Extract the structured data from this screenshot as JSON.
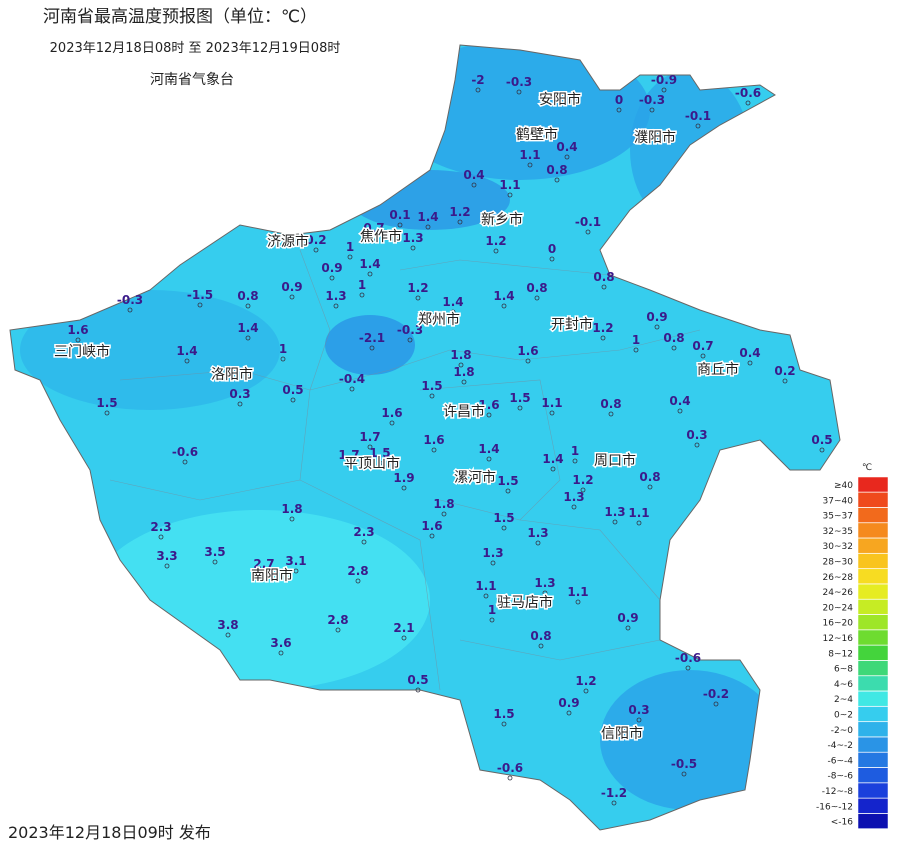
{
  "header": {
    "title": "河南省最高温度预报图（单位：℃）",
    "period": "2023年12月18日08时 至 2023年12月19日08时",
    "issuer": "河南省气象台"
  },
  "footer": {
    "published": "2023年12月18日09时 发布"
  },
  "cities": [
    "安阳市",
    "鹤壁市",
    "濮阳市",
    "新乡市",
    "焦作市",
    "济源市",
    "郑州市",
    "开封市",
    "商丘市",
    "三门峡市",
    "洛阳市",
    "许昌市",
    "平顶山市",
    "漯河市",
    "周口市",
    "南阳市",
    "驻马店市",
    "信阳市"
  ],
  "stations": [
    -2,
    -0.3,
    0,
    -0.3,
    -0.9,
    -0.6,
    -0.1,
    1.1,
    0.4,
    0.8,
    0.4,
    1.1,
    1.2,
    1.4,
    0.1,
    0.7,
    -0.1,
    1.2,
    0,
    0.2,
    1.3,
    1,
    1.4,
    0.9,
    1,
    0.8,
    1.3,
    0.9,
    0.8,
    -1.5,
    -0.3,
    1.2,
    1.4,
    1.4,
    0.8,
    1.6,
    1.4,
    -2.1,
    -0.3,
    1.2,
    0.9,
    0.8,
    1,
    0.7,
    0.4,
    1.4,
    1,
    1.8,
    1.6,
    0.2,
    1.8,
    -0.4,
    1.5,
    0.5,
    0.3,
    1.5,
    1.6,
    1.6,
    1.5,
    1.1,
    0.8,
    0.4,
    0.3,
    0.5,
    1.7,
    1.6,
    -0.6,
    1.4,
    1.4,
    1,
    1.7,
    1.5,
    1.2,
    0.8,
    1.9,
    1.5,
    1.3,
    1.8,
    1.3,
    1.1,
    1.8,
    1.5,
    1.6,
    1.3,
    2.3,
    2.3,
    3.3,
    3.5,
    2.7,
    3.1,
    1.3,
    2.8,
    1.3,
    1.1,
    1.1,
    1,
    0.9,
    3.8,
    2.8,
    2.1,
    0.8,
    3.6,
    -0.6,
    0.5,
    1.2,
    -0.2,
    0.9,
    0.3,
    1.5,
    -0.6,
    -0.5,
    -1.2
  ],
  "legend": {
    "unit": "℃",
    "items": [
      {
        "label": "≥40",
        "color": "#e8281e"
      },
      {
        "label": "37~40",
        "color": "#ef4a1c"
      },
      {
        "label": "35~37",
        "color": "#f26a1c"
      },
      {
        "label": "32~35",
        "color": "#f58a1e"
      },
      {
        "label": "30~32",
        "color": "#f7a620"
      },
      {
        "label": "28~30",
        "color": "#f9c41e"
      },
      {
        "label": "26~28",
        "color": "#f7dc22"
      },
      {
        "label": "24~26",
        "color": "#e6ec22"
      },
      {
        "label": "20~24",
        "color": "#c6ec24"
      },
      {
        "label": "16~20",
        "color": "#9ee628"
      },
      {
        "label": "12~16",
        "color": "#6edc30"
      },
      {
        "label": "8~12",
        "color": "#44d43c"
      },
      {
        "label": "6~8",
        "color": "#3ed878"
      },
      {
        "label": "4~6",
        "color": "#3cdcae"
      },
      {
        "label": "2~4",
        "color": "#40e8e4"
      },
      {
        "label": "0~2",
        "color": "#36cdee"
      },
      {
        "label": "-2~0",
        "color": "#2eb2ea"
      },
      {
        "label": "-4~-2",
        "color": "#2a94e6"
      },
      {
        "label": "-6~-4",
        "color": "#2478e2"
      },
      {
        "label": "-8~-6",
        "color": "#1e5ce0"
      },
      {
        "label": "-12~-8",
        "color": "#1a40dc"
      },
      {
        "label": "-16~-12",
        "color": "#1424cc"
      },
      {
        "label": "<-16",
        "color": "#0c10b0"
      }
    ]
  }
}
